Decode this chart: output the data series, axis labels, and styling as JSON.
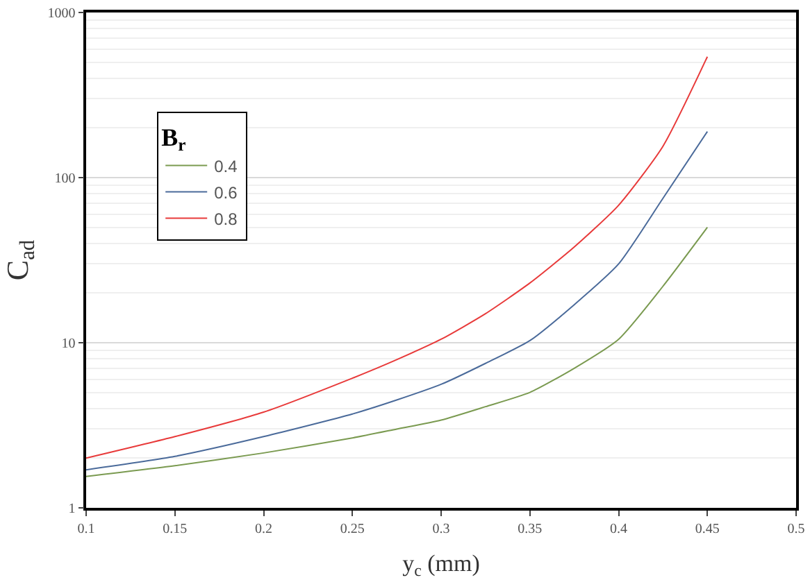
{
  "chart_data": {
    "type": "line",
    "xlabel": "y$_{c}$ (mm)",
    "ylabel": "C$_{ad}$",
    "legend_title": "B$_{r}$",
    "x": [
      0.1,
      0.15,
      0.2,
      0.25,
      0.275,
      0.3,
      0.325,
      0.35,
      0.375,
      0.4,
      0.425,
      0.45
    ],
    "series": [
      {
        "name": "0.4",
        "color": "#7a9a50",
        "values": [
          1.55,
          1.8,
          2.15,
          2.65,
          3.0,
          3.4,
          4.1,
          5.0,
          7.0,
          10.5,
          22,
          50
        ]
      },
      {
        "name": "0.6",
        "color": "#4a6a9a",
        "values": [
          1.7,
          2.05,
          2.7,
          3.7,
          4.5,
          5.6,
          7.5,
          10.3,
          17,
          30,
          75,
          190
        ]
      },
      {
        "name": "0.8",
        "color": "#e83a3a",
        "values": [
          2.0,
          2.7,
          3.8,
          6.1,
          7.9,
          10.5,
          15,
          23,
          38,
          68,
          155,
          540
        ]
      }
    ],
    "xlim": [
      0.1,
      0.5
    ],
    "xticks": [
      0.1,
      0.15,
      0.2,
      0.25,
      0.3,
      0.35,
      0.4,
      0.45,
      0.5
    ],
    "ylim": [
      1,
      1000
    ],
    "yticks": [
      1,
      10,
      100,
      1000
    ],
    "log": "y",
    "grid": "y",
    "legend": "top left",
    "marker": "none",
    "line_style": "solid"
  }
}
